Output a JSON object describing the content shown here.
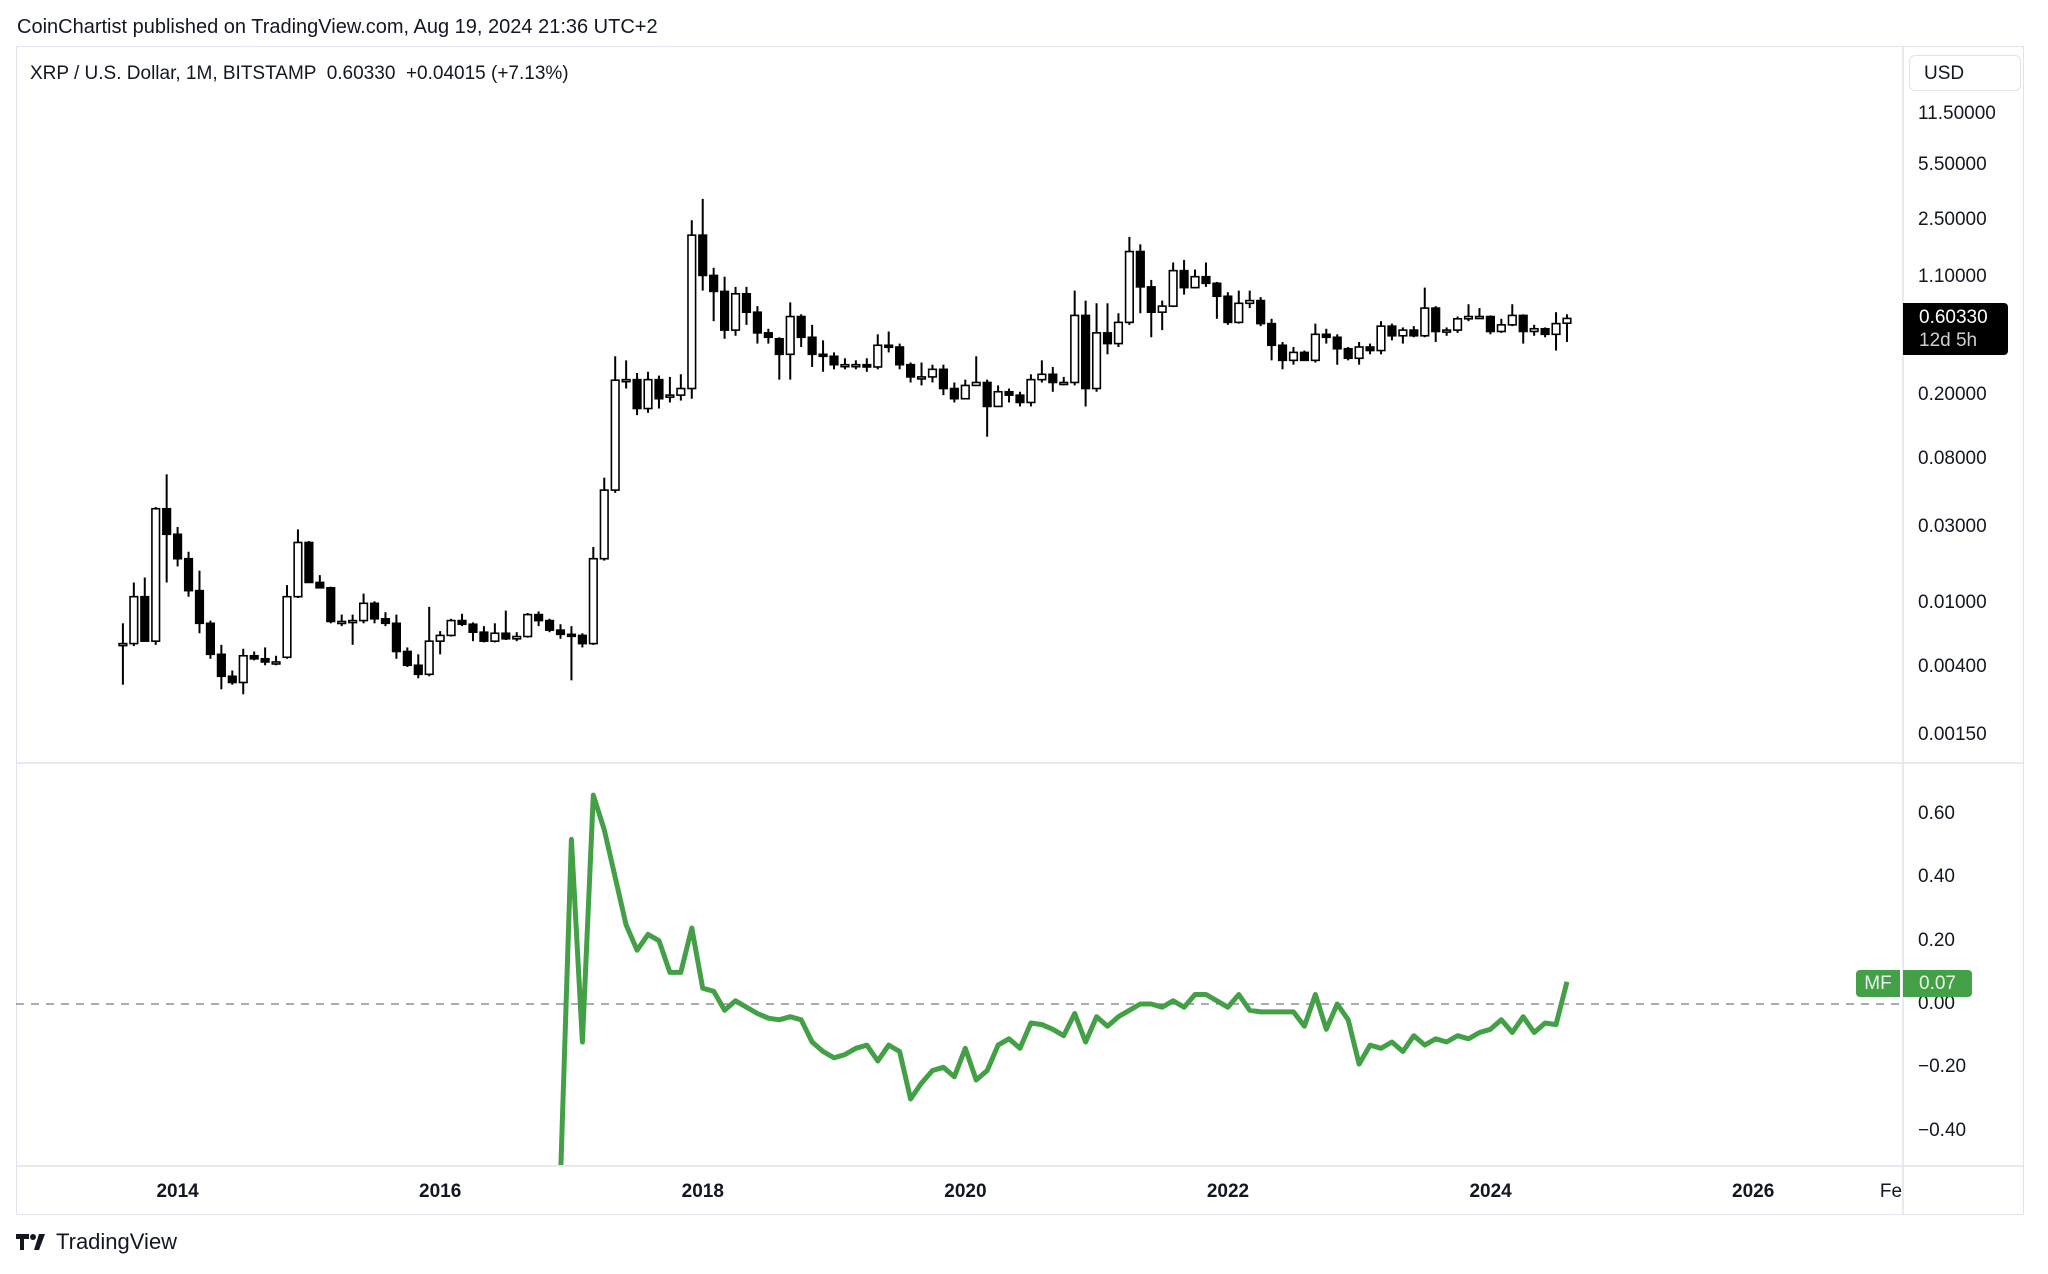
{
  "publish_line": "CoinChartist published on TradingView.com, Aug 19, 2024 21:36 UTC+2",
  "legend": {
    "symbol": "XRP / U.S. Dollar, 1M, BITSTAMP",
    "last": "0.60330",
    "change": "+0.04015 (+7.13%)"
  },
  "currency_button": "USD",
  "last_price_label": {
    "price": "0.60330",
    "countdown": "12d 5h"
  },
  "indicator_label": {
    "name": "MF",
    "value": "0.07"
  },
  "brand": "TradingView",
  "colors": {
    "bull_body": "#ffffff",
    "bear_body": "#000000",
    "candle_outline": "#000000",
    "mf_line": "#43a047",
    "grid_border": "#e0e3eb",
    "zero_line": "#787b86"
  },
  "icons": {
    "logo": "tradingview-logo-icon"
  },
  "chart_data": [
    {
      "type": "candlestick",
      "scale": "log",
      "start_month": "2013-08",
      "interval": "1M",
      "y_ticks": [
        "11.50000",
        "5.50000",
        "2.50000",
        "1.10000",
        "0.20000",
        "0.08000",
        "0.03000",
        "0.01000",
        "0.00400",
        "0.00150"
      ],
      "x_ticks": [
        "2014",
        "2016",
        "2018",
        "2020",
        "2022",
        "2024",
        "2026",
        "Fe"
      ],
      "ohlc": [
        [
          0.0055,
          0.0075,
          0.0031,
          0.0056
        ],
        [
          0.0056,
          0.0135,
          0.0054,
          0.011
        ],
        [
          0.011,
          0.0145,
          0.0058,
          0.0058
        ],
        [
          0.0058,
          0.04,
          0.0055,
          0.039
        ],
        [
          0.039,
          0.064,
          0.0135,
          0.027
        ],
        [
          0.027,
          0.03,
          0.017,
          0.019
        ],
        [
          0.019,
          0.021,
          0.011,
          0.012
        ],
        [
          0.012,
          0.016,
          0.0065,
          0.0075
        ],
        [
          0.0075,
          0.0078,
          0.0045,
          0.0048
        ],
        [
          0.0048,
          0.0055,
          0.0029,
          0.0035
        ],
        [
          0.0035,
          0.0038,
          0.0031,
          0.0032
        ],
        [
          0.0032,
          0.0052,
          0.0027,
          0.0047
        ],
        [
          0.0047,
          0.005,
          0.0044,
          0.0045
        ],
        [
          0.0045,
          0.0053,
          0.0041,
          0.0043
        ],
        [
          0.0043,
          0.0047,
          0.0041,
          0.0043
        ],
        [
          0.0046,
          0.013,
          0.0045,
          0.011
        ],
        [
          0.011,
          0.029,
          0.0108,
          0.024
        ],
        [
          0.024,
          0.0245,
          0.0135,
          0.0135
        ],
        [
          0.0135,
          0.015,
          0.0125,
          0.0125
        ],
        [
          0.0125,
          0.0127,
          0.0075,
          0.0077
        ],
        [
          0.0077,
          0.0085,
          0.0072,
          0.0077
        ],
        [
          0.0077,
          0.0085,
          0.0055,
          0.0078
        ],
        [
          0.0078,
          0.0115,
          0.0075,
          0.01
        ],
        [
          0.01,
          0.0103,
          0.0075,
          0.008
        ],
        [
          0.008,
          0.0088,
          0.0072,
          0.0075
        ],
        [
          0.0075,
          0.0085,
          0.0045,
          0.005
        ],
        [
          0.005,
          0.0053,
          0.004,
          0.0041
        ],
        [
          0.0041,
          0.0048,
          0.0034,
          0.0036
        ],
        [
          0.0036,
          0.0095,
          0.0035,
          0.0058
        ],
        [
          0.0058,
          0.0067,
          0.0048,
          0.0063
        ],
        [
          0.0063,
          0.008,
          0.0062,
          0.0078
        ],
        [
          0.0078,
          0.0086,
          0.0072,
          0.0074
        ],
        [
          0.0074,
          0.0076,
          0.0058,
          0.0066
        ],
        [
          0.0066,
          0.0072,
          0.0057,
          0.0058
        ],
        [
          0.0058,
          0.0075,
          0.0057,
          0.0065
        ],
        [
          0.0065,
          0.009,
          0.0059,
          0.006
        ],
        [
          0.006,
          0.0066,
          0.0058,
          0.0062
        ],
        [
          0.0062,
          0.0087,
          0.0061,
          0.0085
        ],
        [
          0.0085,
          0.0089,
          0.0072,
          0.0078
        ],
        [
          0.0078,
          0.008,
          0.0066,
          0.0068
        ],
        [
          0.0068,
          0.0074,
          0.006,
          0.0064
        ],
        [
          0.0064,
          0.0072,
          0.0033,
          0.0063
        ],
        [
          0.0063,
          0.0065,
          0.0053,
          0.0056
        ],
        [
          0.0056,
          0.0225,
          0.0055,
          0.019
        ],
        [
          0.019,
          0.061,
          0.0185,
          0.051
        ],
        [
          0.051,
          0.35,
          0.049,
          0.248
        ],
        [
          0.248,
          0.33,
          0.22,
          0.25
        ],
        [
          0.25,
          0.275,
          0.15,
          0.165
        ],
        [
          0.165,
          0.28,
          0.155,
          0.25
        ],
        [
          0.25,
          0.265,
          0.165,
          0.19
        ],
        [
          0.195,
          0.26,
          0.18,
          0.2
        ],
        [
          0.2,
          0.27,
          0.185,
          0.22
        ],
        [
          0.22,
          2.48,
          0.19,
          2.0
        ],
        [
          2.0,
          3.37,
          0.9,
          1.12
        ],
        [
          1.12,
          1.25,
          0.58,
          0.89
        ],
        [
          0.89,
          1.1,
          0.45,
          0.51
        ],
        [
          0.51,
          0.95,
          0.47,
          0.86
        ],
        [
          0.86,
          0.95,
          0.55,
          0.66
        ],
        [
          0.66,
          0.72,
          0.42,
          0.49
        ],
        [
          0.49,
          0.52,
          0.42,
          0.46
        ],
        [
          0.45,
          0.46,
          0.25,
          0.36
        ],
        [
          0.36,
          0.76,
          0.25,
          0.62
        ],
        [
          0.62,
          0.64,
          0.4,
          0.46
        ],
        [
          0.46,
          0.55,
          0.3,
          0.36
        ],
        [
          0.36,
          0.44,
          0.28,
          0.35
        ],
        [
          0.35,
          0.37,
          0.29,
          0.31
        ],
        [
          0.31,
          0.34,
          0.29,
          0.31
        ],
        [
          0.31,
          0.33,
          0.29,
          0.31
        ],
        [
          0.31,
          0.34,
          0.28,
          0.3
        ],
        [
          0.3,
          0.48,
          0.29,
          0.41
        ],
        [
          0.41,
          0.5,
          0.37,
          0.4
        ],
        [
          0.4,
          0.42,
          0.29,
          0.31
        ],
        [
          0.31,
          0.32,
          0.24,
          0.26
        ],
        [
          0.26,
          0.32,
          0.23,
          0.26
        ],
        [
          0.26,
          0.31,
          0.24,
          0.29
        ],
        [
          0.29,
          0.31,
          0.2,
          0.22
        ],
        [
          0.22,
          0.24,
          0.18,
          0.19
        ],
        [
          0.19,
          0.25,
          0.19,
          0.23
        ],
        [
          0.23,
          0.35,
          0.23,
          0.24
        ],
        [
          0.24,
          0.25,
          0.11,
          0.17
        ],
        [
          0.17,
          0.23,
          0.17,
          0.21
        ],
        [
          0.21,
          0.22,
          0.18,
          0.2
        ],
        [
          0.2,
          0.21,
          0.17,
          0.18
        ],
        [
          0.18,
          0.27,
          0.17,
          0.25
        ],
        [
          0.25,
          0.33,
          0.24,
          0.27
        ],
        [
          0.27,
          0.3,
          0.21,
          0.24
        ],
        [
          0.24,
          0.26,
          0.23,
          0.24
        ],
        [
          0.24,
          0.9,
          0.23,
          0.63
        ],
        [
          0.63,
          0.78,
          0.17,
          0.22
        ],
        [
          0.22,
          0.75,
          0.21,
          0.49
        ],
        [
          0.49,
          0.75,
          0.36,
          0.42
        ],
        [
          0.42,
          0.65,
          0.4,
          0.57
        ],
        [
          0.57,
          1.95,
          0.55,
          1.58
        ],
        [
          1.58,
          1.75,
          0.65,
          0.95
        ],
        [
          0.95,
          1.05,
          0.46,
          0.66
        ],
        [
          0.66,
          0.78,
          0.51,
          0.72
        ],
        [
          0.72,
          1.35,
          0.71,
          1.2
        ],
        [
          1.2,
          1.4,
          0.85,
          0.94
        ],
        [
          0.94,
          1.22,
          0.93,
          1.1
        ],
        [
          1.1,
          1.35,
          0.95,
          1.0
        ],
        [
          1.0,
          1.02,
          0.6,
          0.83
        ],
        [
          0.83,
          0.88,
          0.55,
          0.57
        ],
        [
          0.57,
          0.9,
          0.56,
          0.75
        ],
        [
          0.75,
          0.9,
          0.7,
          0.78
        ],
        [
          0.78,
          0.82,
          0.54,
          0.56
        ],
        [
          0.56,
          0.6,
          0.33,
          0.41
        ],
        [
          0.41,
          0.43,
          0.29,
          0.33
        ],
        [
          0.33,
          0.4,
          0.31,
          0.37
        ],
        [
          0.37,
          0.38,
          0.33,
          0.33
        ],
        [
          0.33,
          0.56,
          0.32,
          0.48
        ],
        [
          0.48,
          0.52,
          0.42,
          0.46
        ],
        [
          0.46,
          0.48,
          0.31,
          0.39
        ],
        [
          0.39,
          0.4,
          0.33,
          0.34
        ],
        [
          0.34,
          0.43,
          0.31,
          0.4
        ],
        [
          0.4,
          0.42,
          0.36,
          0.38
        ],
        [
          0.38,
          0.58,
          0.36,
          0.54
        ],
        [
          0.54,
          0.56,
          0.44,
          0.47
        ],
        [
          0.47,
          0.53,
          0.42,
          0.51
        ],
        [
          0.51,
          0.54,
          0.46,
          0.47
        ],
        [
          0.47,
          0.94,
          0.46,
          0.7
        ],
        [
          0.7,
          0.72,
          0.43,
          0.5
        ],
        [
          0.5,
          0.53,
          0.47,
          0.51
        ],
        [
          0.51,
          0.62,
          0.49,
          0.6
        ],
        [
          0.6,
          0.74,
          0.58,
          0.62
        ],
        [
          0.62,
          0.7,
          0.6,
          0.62
        ],
        [
          0.62,
          0.63,
          0.48,
          0.5
        ],
        [
          0.5,
          0.6,
          0.49,
          0.55
        ],
        [
          0.55,
          0.74,
          0.54,
          0.63
        ],
        [
          0.63,
          0.64,
          0.42,
          0.5
        ],
        [
          0.5,
          0.55,
          0.47,
          0.52
        ],
        [
          0.52,
          0.53,
          0.46,
          0.48
        ],
        [
          0.48,
          0.66,
          0.38,
          0.56
        ],
        [
          0.5632,
          0.64,
          0.43,
          0.6033
        ]
      ]
    },
    {
      "type": "line",
      "series": [
        {
          "name": "MF"
        }
      ],
      "start_month": "2016-12",
      "zero_line": true,
      "y_ticks": [
        "0.60",
        "0.40",
        "0.20",
        "0.00",
        "−0.20",
        "−0.40"
      ],
      "ylim": [
        -0.55,
        0.72
      ],
      "values": [
        -0.55,
        0.52,
        -0.12,
        0.66,
        0.55,
        0.4,
        0.25,
        0.17,
        0.22,
        0.2,
        0.1,
        0.1,
        0.24,
        0.05,
        0.04,
        -0.02,
        0.01,
        -0.01,
        -0.03,
        -0.045,
        -0.05,
        -0.04,
        -0.05,
        -0.12,
        -0.15,
        -0.17,
        -0.16,
        -0.14,
        -0.13,
        -0.18,
        -0.13,
        -0.15,
        -0.3,
        -0.25,
        -0.21,
        -0.2,
        -0.23,
        -0.14,
        -0.24,
        -0.21,
        -0.13,
        -0.11,
        -0.14,
        -0.06,
        -0.065,
        -0.08,
        -0.1,
        -0.03,
        -0.12,
        -0.04,
        -0.07,
        -0.04,
        -0.02,
        0.0,
        0.0,
        -0.01,
        0.01,
        -0.01,
        0.03,
        0.03,
        0.01,
        -0.01,
        0.03,
        -0.02,
        -0.025,
        -0.025,
        -0.025,
        -0.025,
        -0.07,
        0.03,
        -0.08,
        0.0,
        -0.05,
        -0.19,
        -0.13,
        -0.14,
        -0.12,
        -0.15,
        -0.1,
        -0.13,
        -0.11,
        -0.12,
        -0.1,
        -0.11,
        -0.09,
        -0.08,
        -0.05,
        -0.09,
        -0.04,
        -0.09,
        -0.06,
        -0.065,
        0.07
      ]
    }
  ]
}
